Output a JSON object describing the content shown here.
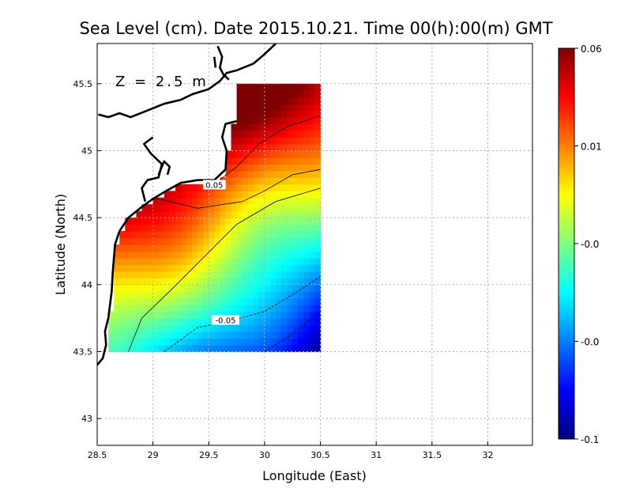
{
  "chart_data": {
    "type": "heatmap",
    "title": "Sea Level (cm). Date 2015.10.21. Time 00(h):00(m) GMT",
    "xlabel": "Longitude (East)",
    "ylabel": "Latitude (North)",
    "annotation": "Z = 2.5 m",
    "xlim": [
      28.5,
      32.4
    ],
    "ylim": [
      42.8,
      45.8
    ],
    "x_ticks": [
      "28.5",
      "29",
      "29.5",
      "30",
      "30.5",
      "31",
      "31.5",
      "32"
    ],
    "y_ticks": [
      "43",
      "43.5",
      "44",
      "44.5",
      "45",
      "45.5"
    ],
    "grid": true,
    "data_extent": {
      "lon": [
        28.6,
        30.5
      ],
      "lat": [
        43.5,
        45.5
      ]
    },
    "contour_labels": [
      {
        "text": "0.05",
        "lon": 29.55,
        "lat": 44.74
      },
      {
        "text": "-0.05",
        "lon": 29.65,
        "lat": 43.73
      }
    ],
    "colorbar": {
      "min": -0.1,
      "max": 0.06,
      "tick_labels": [
        "0.06",
        "0.01",
        "-0.0",
        "-0.0",
        "-0.1"
      ],
      "colors": [
        "#00007f",
        "#0000ff",
        "#007fff",
        "#00ffff",
        "#7fff7f",
        "#ffff00",
        "#ff7f00",
        "#ff0000",
        "#7f0000"
      ]
    }
  }
}
